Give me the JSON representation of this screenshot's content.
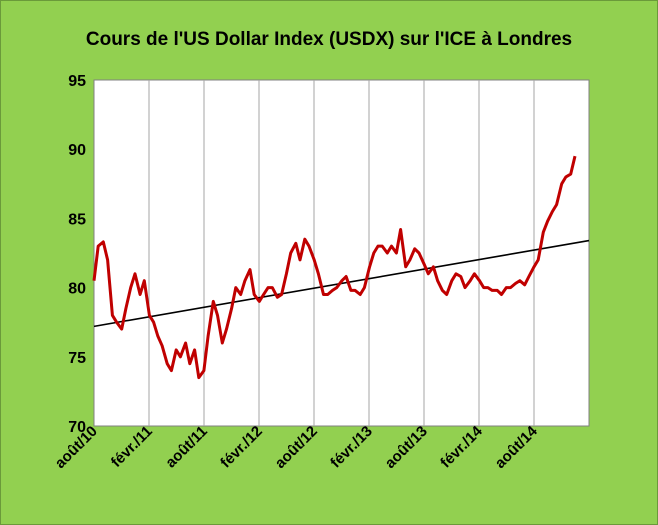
{
  "chart_data": {
    "type": "line",
    "title": "Cours de l'US Dollar Index (USDX) sur l'ICE à Londres",
    "xlabel": "",
    "ylabel": "",
    "ylim": [
      70,
      95
    ],
    "y_ticks": [
      70,
      75,
      80,
      85,
      90,
      95
    ],
    "x_ticks": [
      "août/10",
      "févr./11",
      "août/11",
      "févr./12",
      "août/12",
      "févr./13",
      "août/13",
      "févr./14",
      "août/14"
    ],
    "grid": "vertical",
    "legend": "none",
    "colors": {
      "background": "#92d050",
      "plot_area": "#ffffff",
      "series": "#c00000",
      "trend": "#000000",
      "grid": "#a6a6a6"
    },
    "series": [
      {
        "x": [
          "2010-08-01",
          "2010-08-15",
          "2010-09-01",
          "2010-09-15",
          "2010-10-01",
          "2010-10-15",
          "2010-11-01",
          "2010-11-15",
          "2010-12-01",
          "2010-12-15",
          "2011-01-01",
          "2011-01-15",
          "2011-02-01",
          "2011-02-15",
          "2011-03-01",
          "2011-03-15",
          "2011-04-01",
          "2011-04-15",
          "2011-05-01",
          "2011-05-15",
          "2011-06-01",
          "2011-06-15",
          "2011-07-01",
          "2011-07-15",
          "2011-08-01",
          "2011-08-15",
          "2011-09-01",
          "2011-09-15",
          "2011-10-01",
          "2011-10-15",
          "2011-11-01",
          "2011-11-15",
          "2011-12-01",
          "2011-12-15",
          "2012-01-01",
          "2012-01-15",
          "2012-02-01",
          "2012-02-15",
          "2012-03-01",
          "2012-03-15",
          "2012-04-01",
          "2012-04-15",
          "2012-05-01",
          "2012-05-15",
          "2012-06-01",
          "2012-06-15",
          "2012-07-01",
          "2012-07-15",
          "2012-08-01",
          "2012-08-15",
          "2012-09-01",
          "2012-09-15",
          "2012-10-01",
          "2012-10-15",
          "2012-11-01",
          "2012-11-15",
          "2012-12-01",
          "2012-12-15",
          "2013-01-01",
          "2013-01-15",
          "2013-02-01",
          "2013-02-15",
          "2013-03-01",
          "2013-03-15",
          "2013-04-01",
          "2013-04-15",
          "2013-05-01",
          "2013-05-15",
          "2013-06-01",
          "2013-06-15",
          "2013-07-01",
          "2013-07-15",
          "2013-08-01",
          "2013-08-15",
          "2013-09-01",
          "2013-09-15",
          "2013-10-01",
          "2013-10-15",
          "2013-11-01",
          "2013-11-15",
          "2013-12-01",
          "2013-12-15",
          "2014-01-01",
          "2014-01-15",
          "2014-02-01",
          "2014-02-15",
          "2014-03-01",
          "2014-03-15",
          "2014-04-01",
          "2014-04-15",
          "2014-05-01",
          "2014-05-15",
          "2014-06-01",
          "2014-06-15",
          "2014-07-01",
          "2014-07-15",
          "2014-08-01",
          "2014-08-15",
          "2014-09-01",
          "2014-09-15",
          "2014-10-01",
          "2014-10-15",
          "2014-11-01",
          "2014-11-15",
          "2014-12-01",
          "2014-12-15"
        ],
        "values": [
          80.5,
          83.0,
          83.3,
          82.0,
          78.0,
          77.5,
          77.0,
          78.5,
          80.0,
          81.0,
          79.5,
          80.5,
          78.0,
          77.5,
          76.5,
          75.8,
          74.5,
          74.0,
          75.5,
          75.0,
          76.0,
          74.5,
          75.5,
          73.5,
          74.0,
          76.5,
          79.0,
          78.0,
          76.0,
          77.0,
          78.5,
          80.0,
          79.5,
          80.5,
          81.3,
          79.5,
          79.0,
          79.5,
          80.0,
          80.0,
          79.3,
          79.5,
          81.0,
          82.5,
          83.2,
          82.0,
          83.5,
          83.0,
          82.0,
          81.0,
          79.5,
          79.5,
          79.8,
          80.0,
          80.5,
          80.8,
          79.8,
          79.8,
          79.5,
          80.0,
          81.5,
          82.5,
          83.0,
          83.0,
          82.5,
          83.0,
          82.5,
          84.2,
          81.5,
          82.0,
          82.8,
          82.5,
          81.7,
          81.0,
          81.5,
          80.5,
          79.8,
          79.5,
          80.5,
          81.0,
          80.8,
          80.0,
          80.5,
          81.0,
          80.5,
          80.0,
          80.0,
          79.8,
          79.8,
          79.5,
          80.0,
          80.0,
          80.3,
          80.5,
          80.2,
          80.8,
          81.5,
          82.0,
          84.0,
          84.8,
          85.5,
          86.0,
          87.5,
          88.0,
          88.2,
          89.5
        ]
      }
    ],
    "trend_line": {
      "start": 77.2,
      "end": 83.4
    }
  }
}
